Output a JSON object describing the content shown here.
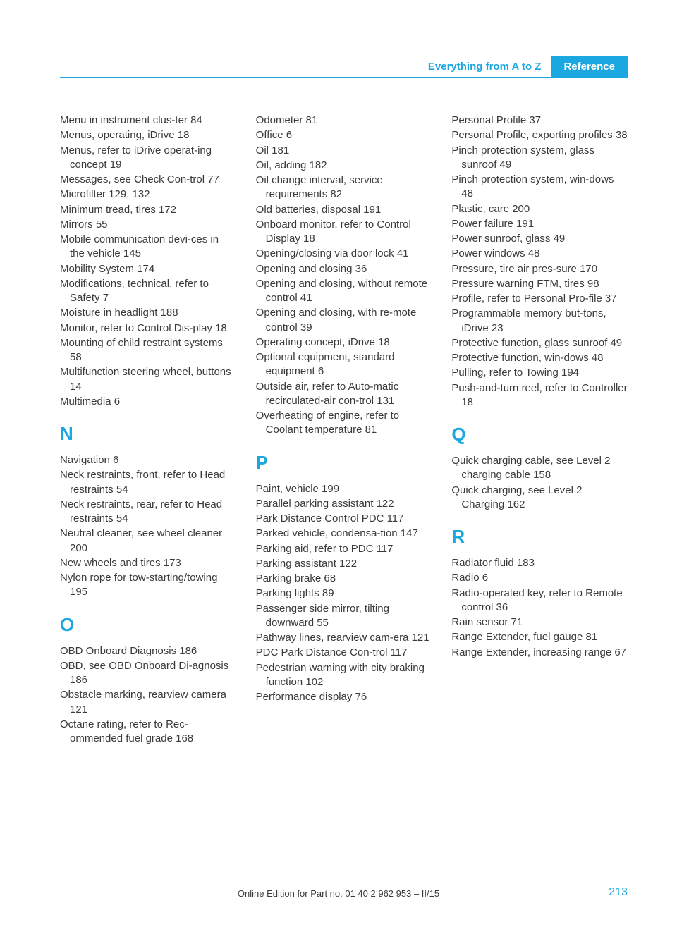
{
  "header": {
    "section": "Everything from A to Z",
    "reference": "Reference"
  },
  "colors": {
    "accent": "#1ba7e0",
    "text": "#3a3a3a",
    "bg": "#ffffff"
  },
  "columns": [
    {
      "blocks": [
        {
          "type": "entries",
          "items": [
            "Menu in instrument clus‐ter 84",
            "Menus, operating, iDrive 18",
            "Menus, refer to iDrive operat‐ing concept 19",
            "Messages, see Check Con‐trol 77",
            "Microfilter 129, 132",
            "Minimum tread, tires 172",
            "Mirrors 55",
            "Mobile communication devi‐ces in the vehicle 145",
            "Mobility System 174",
            "Modifications, technical, refer to Safety 7",
            "Moisture in headlight 188",
            "Monitor, refer to Control Dis‐play 18",
            "Mounting of child restraint systems 58",
            "Multifunction steering wheel, buttons 14",
            "Multimedia 6"
          ]
        },
        {
          "type": "letter",
          "text": "N"
        },
        {
          "type": "entries",
          "items": [
            "Navigation 6",
            "Neck restraints, front, refer to Head restraints 54",
            "Neck restraints, rear, refer to Head restraints 54",
            "Neutral cleaner, see wheel cleaner 200",
            "New wheels and tires 173",
            "Nylon rope for tow-starting/towing 195"
          ]
        },
        {
          "type": "letter",
          "text": "O"
        },
        {
          "type": "entries",
          "items": [
            "OBD Onboard Diagnosis 186",
            "OBD, see OBD Onboard Di‐agnosis 186",
            "Obstacle marking, rearview camera 121",
            "Octane rating, refer to Rec‐ommended fuel grade 168"
          ]
        }
      ]
    },
    {
      "blocks": [
        {
          "type": "entries",
          "items": [
            "Odometer 81",
            "Office 6",
            "Oil 181",
            "Oil, adding 182",
            "Oil change interval, service requirements 82",
            "Old batteries, disposal 191",
            "Onboard monitor, refer to Control Display 18",
            "Opening/closing via door lock 41",
            "Opening and closing 36",
            "Opening and closing, without remote control 41",
            "Opening and closing, with re‐mote control 39",
            "Operating concept, iDrive 18",
            "Optional equipment, standard equipment 6",
            "Outside air, refer to Auto‐matic recirculated-air con‐trol 131",
            "Overheating of engine, refer to Coolant temperature 81"
          ]
        },
        {
          "type": "letter",
          "text": "P"
        },
        {
          "type": "entries",
          "items": [
            "Paint, vehicle 199",
            "Parallel parking assistant 122",
            "Park Distance Control PDC 117",
            "Parked vehicle, condensa‐tion 147",
            "Parking aid, refer to PDC 117",
            "Parking assistant 122",
            "Parking brake 68",
            "Parking lights 89",
            "Passenger side mirror, tilting downward 55",
            "Pathway lines, rearview cam‐era 121",
            "PDC Park Distance Con‐trol 117",
            "Pedestrian warning with city braking function 102",
            "Performance display 76"
          ]
        }
      ]
    },
    {
      "blocks": [
        {
          "type": "entries",
          "items": [
            "Personal Profile 37",
            "Personal Profile, exporting profiles 38",
            "Pinch protection system, glass sunroof 49",
            "Pinch protection system, win‐dows 48",
            "Plastic, care 200",
            "Power failure 191",
            "Power sunroof, glass 49",
            "Power windows 48",
            "Pressure, tire air pres‐sure 170",
            "Pressure warning FTM, tires 98",
            "Profile, refer to Personal Pro‐file 37",
            "Programmable memory but‐tons, iDrive 23",
            "Protective function, glass sunroof 49",
            "Protective function, win‐dows 48",
            "Pulling, refer to Towing 194",
            "Push-and-turn reel, refer to Controller 18"
          ]
        },
        {
          "type": "letter",
          "text": "Q"
        },
        {
          "type": "entries",
          "items": [
            "Quick charging cable, see Level 2 charging cable 158",
            "Quick charging, see Level 2 Charging 162"
          ]
        },
        {
          "type": "letter",
          "text": "R"
        },
        {
          "type": "entries",
          "items": [
            "Radiator fluid 183",
            "Radio 6",
            "Radio-operated key, refer to Remote control 36",
            "Rain sensor 71",
            "Range Extender, fuel gauge 81",
            "Range Extender, increasing range 67"
          ]
        }
      ]
    }
  ],
  "footer": {
    "text": "Online Edition for Part no. 01 40 2 962 953 – II/15",
    "page": "213"
  }
}
